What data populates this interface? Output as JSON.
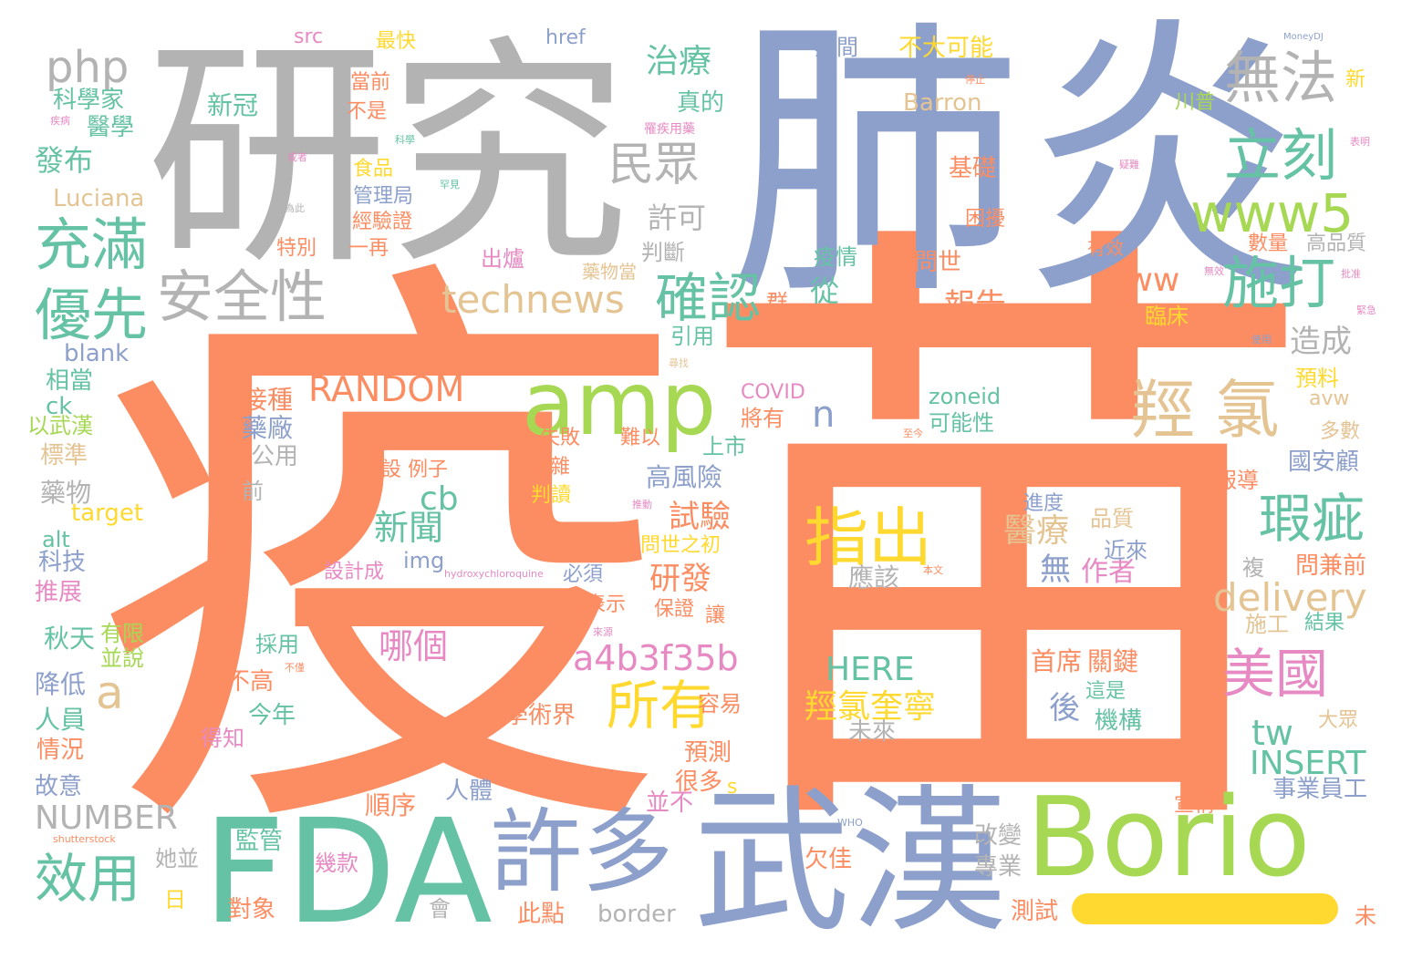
{
  "palette": {
    "orange": "#fc8d62",
    "blue": "#8da0cb",
    "green": "#66c2a5",
    "lime": "#a6d854",
    "yellow": "#ffd92f",
    "tan": "#e5c494",
    "pink": "#e78ac3",
    "gray": "#b3b3b3"
  },
  "words": [
    {
      "text": "疫",
      "color": "orange"
    },
    {
      "text": "苗",
      "color": "orange"
    },
    {
      "text": "研究",
      "color": "gray"
    },
    {
      "text": "肺炎",
      "color": "blue"
    },
    {
      "text": "武漢",
      "color": "blue"
    },
    {
      "text": "FDA",
      "color": "green"
    },
    {
      "text": "Borio",
      "color": "lime"
    },
    {
      "text": "許多",
      "color": "blue"
    },
    {
      "text": "amp",
      "color": "lime"
    },
    {
      "text": "www5",
      "color": "lime"
    },
    {
      "text": "羥 氯",
      "color": "tan"
    },
    {
      "text": "指出",
      "color": "yellow"
    },
    {
      "text": "安全性",
      "color": "gray"
    },
    {
      "text": "充滿",
      "color": "green"
    },
    {
      "text": "優先",
      "color": "green"
    },
    {
      "text": "確認",
      "color": "green"
    },
    {
      "text": "施打",
      "color": "green"
    },
    {
      "text": "立刻",
      "color": "green"
    },
    {
      "text": "無法",
      "color": "gray"
    },
    {
      "text": "民眾",
      "color": "gray"
    },
    {
      "text": "php",
      "color": "gray"
    },
    {
      "text": "technews",
      "color": "tan"
    },
    {
      "text": "瑕疵",
      "color": "green"
    },
    {
      "text": "美國",
      "color": "pink"
    },
    {
      "text": "所有",
      "color": "yellow"
    },
    {
      "text": "效用",
      "color": "green"
    },
    {
      "text": "delivery",
      "color": "tan"
    },
    {
      "text": "RANDOM",
      "color": "orange"
    },
    {
      "text": "a4b3f35b",
      "color": "pink"
    },
    {
      "text": "www",
      "color": "orange"
    },
    {
      "text": "治療",
      "color": "green"
    },
    {
      "text": "a",
      "color": "tan"
    },
    {
      "text": "NUMBER",
      "color": "gray"
    },
    {
      "text": "INSERT",
      "color": "green"
    },
    {
      "text": "HERE",
      "color": "green"
    },
    {
      "text": "羥氯奎寧",
      "color": "yellow"
    },
    {
      "text": "新聞",
      "color": "green"
    },
    {
      "text": "cb",
      "color": "green"
    },
    {
      "text": "tw",
      "color": "green"
    },
    {
      "text": "n",
      "color": "blue"
    },
    {
      "text": "哪個",
      "color": "pink"
    },
    {
      "text": "醫療",
      "color": "tan"
    },
    {
      "text": "試驗",
      "color": "orange"
    },
    {
      "text": "研發",
      "color": "orange"
    },
    {
      "text": "許可",
      "color": "gray"
    },
    {
      "text": "發布",
      "color": "green"
    },
    {
      "text": "科學家",
      "color": "green"
    },
    {
      "text": "醫學",
      "color": "green"
    },
    {
      "text": "新冠",
      "color": "green"
    },
    {
      "text": "報告",
      "color": "orange"
    },
    {
      "text": "造成",
      "color": "gray"
    },
    {
      "text": "從",
      "color": "green"
    },
    {
      "text": "無",
      "color": "blue"
    },
    {
      "text": "作者",
      "color": "pink"
    },
    {
      "text": "後",
      "color": "blue"
    },
    {
      "text": "首席",
      "color": "orange"
    },
    {
      "text": "關鍵",
      "color": "orange"
    },
    {
      "text": "機構",
      "color": "green"
    },
    {
      "text": "未來",
      "color": "gray"
    },
    {
      "text": "應該",
      "color": "gray"
    },
    {
      "text": "高風險",
      "color": "blue"
    },
    {
      "text": "接種",
      "color": "orange"
    },
    {
      "text": "藥廠",
      "color": "blue"
    },
    {
      "text": "公用",
      "color": "gray"
    },
    {
      "text": "藥物",
      "color": "gray"
    },
    {
      "text": "標準",
      "color": "tan"
    },
    {
      "text": "以武漢",
      "color": "lime"
    },
    {
      "text": "相當",
      "color": "green"
    },
    {
      "text": "ck",
      "color": "green"
    },
    {
      "text": "blank",
      "color": "blue"
    },
    {
      "text": "Luciana",
      "color": "tan"
    },
    {
      "text": "target",
      "color": "yellow"
    },
    {
      "text": "alt",
      "color": "green"
    },
    {
      "text": "科技",
      "color": "blue"
    },
    {
      "text": "推展",
      "color": "pink"
    },
    {
      "text": "秋天",
      "color": "green"
    },
    {
      "text": "降低",
      "color": "blue"
    },
    {
      "text": "人員",
      "color": "green"
    },
    {
      "text": "情況",
      "color": "orange"
    },
    {
      "text": "故意",
      "color": "blue"
    },
    {
      "text": "有限",
      "color": "lime"
    },
    {
      "text": "並說",
      "color": "lime"
    },
    {
      "text": "不高",
      "color": "orange"
    },
    {
      "text": "今年",
      "color": "green"
    },
    {
      "text": "得知",
      "color": "pink"
    },
    {
      "text": "採用",
      "color": "green"
    },
    {
      "text": "監管",
      "color": "green"
    },
    {
      "text": "她並",
      "color": "gray"
    },
    {
      "text": "日",
      "color": "yellow"
    },
    {
      "text": "對象",
      "color": "orange"
    },
    {
      "text": "會",
      "color": "gray"
    },
    {
      "text": "此點",
      "color": "orange"
    },
    {
      "text": "border",
      "color": "gray"
    },
    {
      "text": "幾款",
      "color": "pink"
    },
    {
      "text": "人體",
      "color": "blue"
    },
    {
      "text": "順序",
      "color": "orange"
    },
    {
      "text": "學術界",
      "color": "orange"
    },
    {
      "text": "預測",
      "color": "orange"
    },
    {
      "text": "很多",
      "color": "orange"
    },
    {
      "text": "並不",
      "color": "pink"
    },
    {
      "text": "容易",
      "color": "orange"
    },
    {
      "text": "s",
      "color": "yellow"
    },
    {
      "text": "欠佳",
      "color": "orange"
    },
    {
      "text": "改變",
      "color": "gray"
    },
    {
      "text": "專業",
      "color": "gray"
    },
    {
      "text": "測試",
      "color": "orange"
    },
    {
      "text": "未",
      "color": "orange"
    },
    {
      "text": "宣稱",
      "color": "orange"
    },
    {
      "text": "事業員工",
      "color": "blue"
    },
    {
      "text": "大眾",
      "color": "tan"
    },
    {
      "text": "施工",
      "color": "tan"
    },
    {
      "text": "結果",
      "color": "green"
    },
    {
      "text": "這是",
      "color": "green"
    },
    {
      "text": "問兼前",
      "color": "orange"
    },
    {
      "text": "複",
      "color": "gray"
    },
    {
      "text": "品質",
      "color": "tan"
    },
    {
      "text": "近來",
      "color": "blue"
    },
    {
      "text": "進度",
      "color": "blue"
    },
    {
      "text": "報導",
      "color": "orange"
    },
    {
      "text": "國安顧",
      "color": "blue"
    },
    {
      "text": "多數",
      "color": "tan"
    },
    {
      "text": "預料",
      "color": "yellow"
    },
    {
      "text": "avw",
      "color": "tan"
    },
    {
      "text": "臨床",
      "color": "yellow"
    },
    {
      "text": "數量",
      "color": "orange"
    },
    {
      "text": "高品質",
      "color": "gray"
    },
    {
      "text": "困擾",
      "color": "orange"
    },
    {
      "text": "問世",
      "color": "orange"
    },
    {
      "text": "基礎",
      "color": "orange"
    },
    {
      "text": "Barron",
      "color": "tan"
    },
    {
      "text": "不大可能",
      "color": "yellow"
    },
    {
      "text": "期間",
      "color": "blue"
    },
    {
      "text": "川普",
      "color": "lime"
    },
    {
      "text": "疫情",
      "color": "green"
    },
    {
      "text": "有效",
      "color": "orange"
    },
    {
      "text": "群",
      "color": "orange"
    },
    {
      "text": "引用",
      "color": "green"
    },
    {
      "text": "判斷",
      "color": "gray"
    },
    {
      "text": "出爐",
      "color": "pink"
    },
    {
      "text": "藥物當",
      "color": "tan"
    },
    {
      "text": "真的",
      "color": "green"
    },
    {
      "text": "特別",
      "color": "orange"
    },
    {
      "text": "一再",
      "color": "orange"
    },
    {
      "text": "經驗證",
      "color": "orange"
    },
    {
      "text": "管理局",
      "color": "blue"
    },
    {
      "text": "食品",
      "color": "yellow"
    },
    {
      "text": "不是",
      "color": "orange"
    },
    {
      "text": "當前",
      "color": "orange"
    },
    {
      "text": "最快",
      "color": "yellow"
    },
    {
      "text": "src",
      "color": "pink"
    },
    {
      "text": "href",
      "color": "blue"
    },
    {
      "text": "zoneid",
      "color": "green"
    },
    {
      "text": "可能性",
      "color": "green"
    },
    {
      "text": "COVID",
      "color": "pink"
    },
    {
      "text": "將有",
      "color": "orange"
    },
    {
      "text": "上市",
      "color": "green"
    },
    {
      "text": "失敗",
      "color": "orange"
    },
    {
      "text": "難以",
      "color": "orange"
    },
    {
      "text": "雜",
      "color": "orange"
    },
    {
      "text": "判讀",
      "color": "yellow"
    },
    {
      "text": "設 例子",
      "color": "orange"
    },
    {
      "text": "img",
      "color": "blue"
    },
    {
      "text": "設計成",
      "color": "pink"
    },
    {
      "text": "必須",
      "color": "blue"
    },
    {
      "text": "表示",
      "color": "orange"
    },
    {
      "text": "問世之初",
      "color": "yellow"
    },
    {
      "text": "保證",
      "color": "orange"
    },
    {
      "text": "讓",
      "color": "orange"
    },
    {
      "text": "前",
      "color": "gray"
    },
    {
      "text": "緊急",
      "color": "pink"
    },
    {
      "text": "使用",
      "color": "blue"
    },
    {
      "text": "MoneyDJ",
      "color": "blue"
    },
    {
      "text": "hydroxychloroquine",
      "color": "pink"
    },
    {
      "text": "shutterstock",
      "color": "orange"
    },
    {
      "text": "WHO",
      "color": "blue"
    },
    {
      "text": "本文",
      "color": "orange"
    },
    {
      "text": "來源",
      "color": "pink"
    },
    {
      "text": "停止",
      "color": "orange"
    },
    {
      "text": "表明",
      "color": "pink"
    },
    {
      "text": "科學",
      "color": "green"
    },
    {
      "text": "為此",
      "color": "gray"
    },
    {
      "text": "不僅",
      "color": "orange"
    },
    {
      "text": "無效",
      "color": "pink"
    },
    {
      "text": "尋找",
      "color": "tan"
    },
    {
      "text": "至今",
      "color": "orange"
    },
    {
      "text": "疾病",
      "color": "pink"
    },
    {
      "text": "疑難",
      "color": "pink"
    },
    {
      "text": "或者",
      "color": "pink"
    },
    {
      "text": "罕見",
      "color": "green"
    },
    {
      "text": "罹疾用藥",
      "color": "pink"
    },
    {
      "text": "新",
      "color": "yellow"
    },
    {
      "text": "推動",
      "color": "pink"
    },
    {
      "text": "批准",
      "color": "pink"
    }
  ]
}
